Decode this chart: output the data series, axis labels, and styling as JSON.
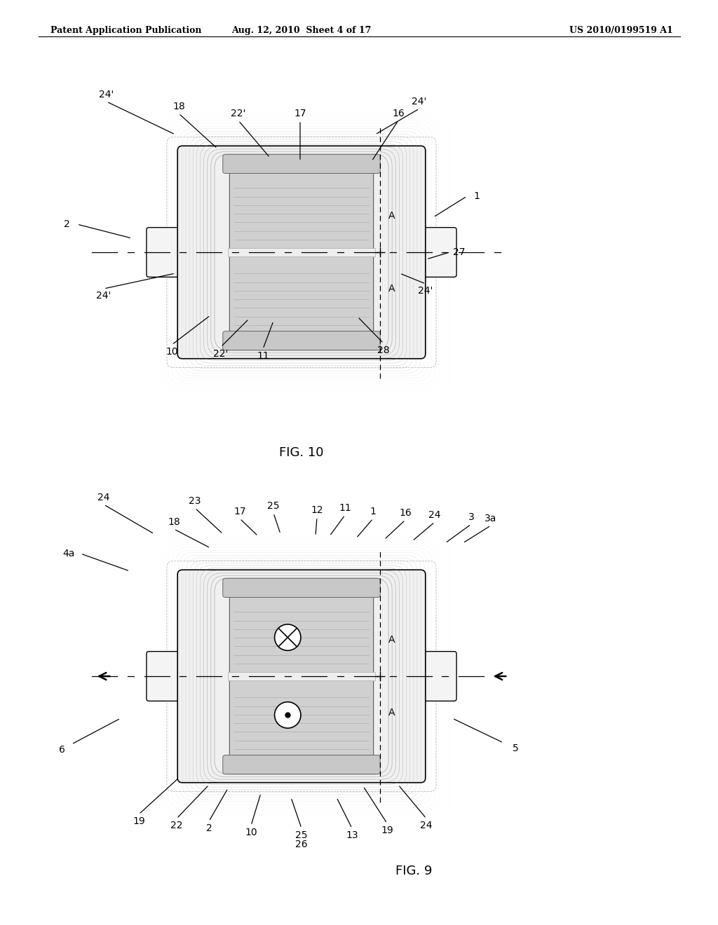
{
  "header_left": "Patent Application Publication",
  "header_center": "Aug. 12, 2010  Sheet 4 of 17",
  "header_right": "US 2010/0199519 A1",
  "fig10_title": "FIG. 10",
  "fig9_title": "FIG. 9",
  "bg_color": "#ffffff",
  "lc": "#000000",
  "gray1": "#999999",
  "gray2": "#bbbbbb",
  "gray3": "#cccccc",
  "gray4": "#dddddd",
  "gray_fill": "#e8e8e8",
  "gray_dark": "#666666"
}
